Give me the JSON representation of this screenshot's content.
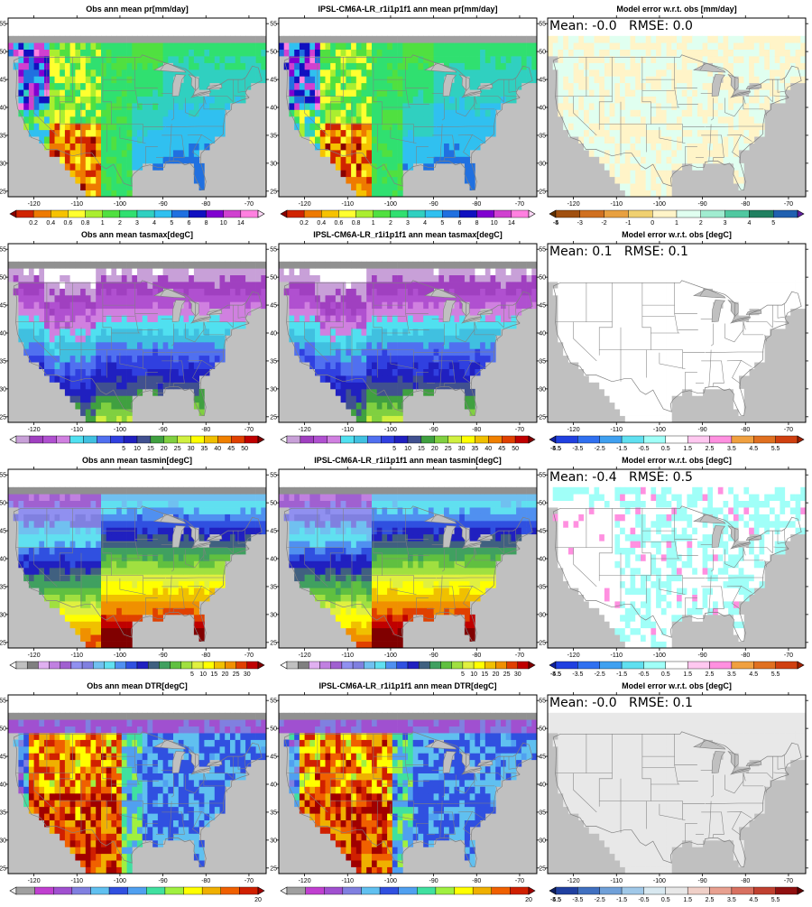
{
  "figure": {
    "rows": [
      {
        "variable": "pr",
        "panels": [
          {
            "title": "Obs  ann mean pr[mm/day]",
            "stats": "",
            "palette": "pr_obs"
          },
          {
            "title": "IPSL-CM6A-LR_r1i1p1f1 ann mean pr[mm/day]",
            "stats": "",
            "palette": "pr_obs"
          },
          {
            "title": "Model error w.r.t. obs [mm/day]",
            "stats": "Mean: -0.0   RMSE: 0.0",
            "palette": "pr_err"
          }
        ],
        "colorbars": [
          {
            "labels": [
              "0.2",
              "0.4",
              "0.6",
              "0.8",
              "1",
              "2",
              "3",
              "4",
              "5",
              "6",
              "8",
              "10",
              "14"
            ],
            "colors": [
              "#8a0000",
              "#d02400",
              "#ee7a00",
              "#f6c200",
              "#ffff30",
              "#aaee30",
              "#50e040",
              "#30e070",
              "#30d0c0",
              "#30c0f0",
              "#2070e0",
              "#1010c0",
              "#8000d0",
              "#d040d0",
              "#ff80e0",
              "#ffd8f8"
            ]
          },
          {
            "labels": [
              "0.2",
              "0.4",
              "0.6",
              "0.8",
              "1",
              "2",
              "3",
              "4",
              "5",
              "6",
              "8",
              "10",
              "14"
            ],
            "colors": [
              "#8a0000",
              "#d02400",
              "#ee7a00",
              "#f6c200",
              "#ffff30",
              "#aaee30",
              "#50e040",
              "#30e070",
              "#30d0c0",
              "#30c0f0",
              "#2070e0",
              "#1010c0",
              "#8000d0",
              "#d040d0",
              "#ff80e0",
              "#ffd8f8"
            ]
          },
          {
            "labels": [
              "-5",
              "-4",
              "-3",
              "-2",
              "-1",
              "0",
              "1",
              "2",
              "3",
              "4",
              "5"
            ],
            "colors": [
              "#603000",
              "#a05010",
              "#d07020",
              "#e8a040",
              "#f0d070",
              "#fff4c8",
              "#e0fff0",
              "#a0ecd0",
              "#50c8a0",
              "#208060",
              "#2060b0",
              "#6020a0"
            ]
          }
        ]
      },
      {
        "variable": "tasmax",
        "panels": [
          {
            "title": "Obs  ann mean tasmax[degC]",
            "stats": "",
            "palette": "tmax"
          },
          {
            "title": "IPSL-CM6A-LR_r1i1p1f1 ann mean tasmax[degC]",
            "stats": "",
            "palette": "tmax"
          },
          {
            "title": "Model error w.r.t. obs [degC]",
            "stats": "Mean: 0.1   RMSE: 0.1",
            "palette": "white"
          }
        ],
        "colorbars": [
          {
            "labels": [
              "5",
              "10",
              "15",
              "20",
              "25",
              "30",
              "35",
              "40",
              "45",
              "50"
            ],
            "colors": [
              "#ffffff",
              "#c8a0d8",
              "#a040c0",
              "#b050d0",
              "#d080e0",
              "#50e0f0",
              "#40c0e0",
              "#5070f0",
              "#3040e0",
              "#2020c0",
              "#405090",
              "#40a040",
              "#80d040",
              "#d0f040",
              "#ffff00",
              "#f0c000",
              "#f08000",
              "#e04000",
              "#c00000",
              "#800000"
            ]
          },
          {
            "labels": [
              "5",
              "10",
              "15",
              "20",
              "25",
              "30",
              "35",
              "40",
              "45",
              "50"
            ],
            "colors": [
              "#ffffff",
              "#c8a0d8",
              "#a040c0",
              "#b050d0",
              "#d080e0",
              "#50e0f0",
              "#40c0e0",
              "#5070f0",
              "#3040e0",
              "#2020c0",
              "#405090",
              "#40a040",
              "#80d040",
              "#d0f040",
              "#ffff00",
              "#f0c000",
              "#f08000",
              "#e04000",
              "#c00000",
              "#800000"
            ]
          },
          {
            "labels": [
              "-5.5",
              "-4.5",
              "-3.5",
              "-2.5",
              "-1.5",
              "-0.5",
              "0.5",
              "1.5",
              "2.5",
              "3.5",
              "4.5",
              "5.5"
            ],
            "colors": [
              "#1020a0",
              "#2040e0",
              "#3070f0",
              "#40a0f0",
              "#60e0f0",
              "#a0fff8",
              "#ffffff",
              "#ffc8f0",
              "#ff90e0",
              "#f0a040",
              "#e07020",
              "#d04010",
              "#a02000"
            ]
          }
        ]
      },
      {
        "variable": "tasmin",
        "panels": [
          {
            "title": "Obs  ann mean tasmin[degC]",
            "stats": "",
            "palette": "tmin"
          },
          {
            "title": "IPSL-CM6A-LR_r1i1p1f1 ann mean tasmin[degC]",
            "stats": "",
            "palette": "tmin"
          },
          {
            "title": "Model error w.r.t. obs [degC]",
            "stats": "Mean: -0.4   RMSE: 0.5",
            "palette": "tmin_err"
          }
        ],
        "colorbars": [
          {
            "labels": [
              "5",
              "10",
              "15",
              "20",
              "25",
              "30"
            ],
            "colors": [
              "#ffffff",
              "#c0c0c0",
              "#808080",
              "#e0b0f0",
              "#c080e0",
              "#a060d0",
              "#9090f0",
              "#8080e0",
              "#70c0f0",
              "#60e0f0",
              "#5090f0",
              "#3050e0",
              "#2020c0",
              "#406080",
              "#40a060",
              "#60c040",
              "#a0e040",
              "#e0f040",
              "#ffff00",
              "#f0c000",
              "#f09000",
              "#e04000",
              "#c00000",
              "#800000"
            ]
          },
          {
            "labels": [
              "5",
              "10",
              "15",
              "20",
              "25",
              "30"
            ],
            "colors": [
              "#ffffff",
              "#c0c0c0",
              "#808080",
              "#e0b0f0",
              "#c080e0",
              "#a060d0",
              "#9090f0",
              "#8080e0",
              "#70c0f0",
              "#60e0f0",
              "#5090f0",
              "#3050e0",
              "#2020c0",
              "#406080",
              "#40a060",
              "#60c040",
              "#a0e040",
              "#e0f040",
              "#ffff00",
              "#f0c000",
              "#f09000",
              "#e04000",
              "#c00000",
              "#800000"
            ]
          },
          {
            "labels": [
              "-5.5",
              "-4.5",
              "-3.5",
              "-2.5",
              "-1.5",
              "-0.5",
              "0.5",
              "1.5",
              "2.5",
              "3.5",
              "4.5",
              "5.5"
            ],
            "colors": [
              "#1020a0",
              "#2040e0",
              "#3070f0",
              "#40a0f0",
              "#60e0f0",
              "#a0fff8",
              "#ffffff",
              "#ffc8f0",
              "#ff90e0",
              "#f0a040",
              "#e07020",
              "#d04010",
              "#a02000"
            ]
          }
        ]
      },
      {
        "variable": "DTR",
        "panels": [
          {
            "title": "Obs  ann mean DTR[degC]",
            "stats": "",
            "palette": "dtr"
          },
          {
            "title": "IPSL-CM6A-LR_r1i1p1f1 ann mean DTR[degC]",
            "stats": "",
            "palette": "dtr"
          },
          {
            "title": "Model error w.r.t. obs [degC]",
            "stats": "Mean: -0.0   RMSE: 0.1",
            "palette": "grey"
          }
        ],
        "colorbars": [
          {
            "labels": [
              "20"
            ],
            "colors": [
              "#f0f0f0",
              "#a0a0a0",
              "#c040d0",
              "#a050d0",
              "#8080e0",
              "#60c0f0",
              "#3050e0",
              "#50a0f0",
              "#40e0a0",
              "#a0f040",
              "#ffff00",
              "#f0b000",
              "#f06000",
              "#d02000",
              "#a00000"
            ]
          },
          {
            "labels": [
              "20"
            ],
            "colors": [
              "#f0f0f0",
              "#a0a0a0",
              "#c040d0",
              "#a050d0",
              "#8080e0",
              "#60c0f0",
              "#3050e0",
              "#50a0f0",
              "#40e0a0",
              "#a0f040",
              "#ffff00",
              "#f0b000",
              "#f06000",
              "#d02000",
              "#a00000"
            ]
          },
          {
            "labels": [
              "-5.5",
              "-4.5",
              "-3.5",
              "-2.5",
              "-1.5",
              "-0.5",
              "0.5",
              "1.5",
              "2.5",
              "3.5",
              "4.5",
              "5.5"
            ],
            "colors": [
              "#102060",
              "#2040a0",
              "#4070c0",
              "#70a0d8",
              "#a0c8e8",
              "#d8e8f0",
              "#e8e8e8",
              "#f0d0c8",
              "#e8a090",
              "#d87060",
              "#c04030",
              "#901010",
              "#600000"
            ]
          }
        ]
      }
    ],
    "x_ticks": [
      "-120",
      "-110",
      "-100",
      "-90",
      "-80",
      "-70"
    ],
    "y_ticks": [
      "25",
      "30",
      "35",
      "40",
      "45",
      "50",
      "55"
    ],
    "colors": {
      "ocean": "#c0c0c0",
      "border": "#808080",
      "frame": "#000000",
      "error_bg": "#ffffff"
    }
  }
}
